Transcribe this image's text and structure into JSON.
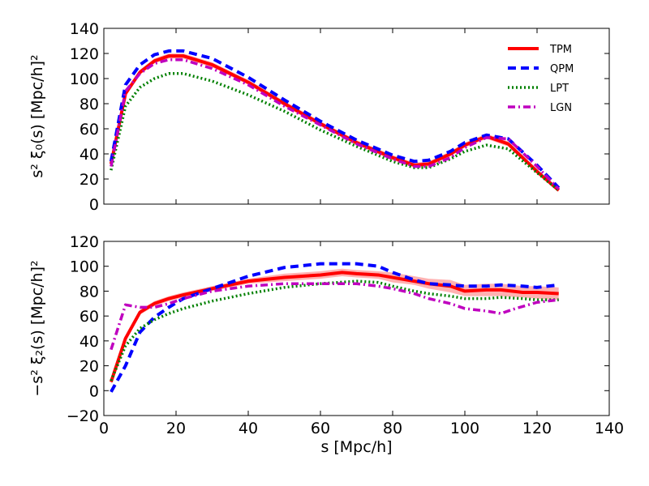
{
  "chart_data": {
    "type": "line",
    "x_label": "s  [Mpc/h]",
    "x_range": [
      0,
      140
    ],
    "x_ticks": [
      "0",
      "20",
      "40",
      "60",
      "80",
      "100",
      "120",
      "140"
    ],
    "series_styles": [
      {
        "name": "TPM",
        "color": "#ff0000",
        "dash": "solid"
      },
      {
        "name": "QPM",
        "color": "#0000ff",
        "dash": "dashed"
      },
      {
        "name": "LPT",
        "color": "#008000",
        "dash": "dotted"
      },
      {
        "name": "LGN",
        "color": "#bf00bf",
        "dash": "dashdot"
      }
    ],
    "panels": [
      {
        "id": "monopole",
        "ylabel": "s² ξ₀(s)  [Mpc/h]²",
        "ylim": [
          0,
          140
        ],
        "y_ticks": [
          "0",
          "20",
          "40",
          "60",
          "80",
          "100",
          "120",
          "140"
        ],
        "legend": [
          "TPM",
          "QPM",
          "LPT",
          "LGN"
        ],
        "legend_position": "top-right",
        "series": [
          {
            "name": "TPM",
            "x": [
              2,
              6,
              10,
              14,
              18,
              22,
              30,
              40,
              50,
              60,
              70,
              80,
              86,
              90,
              96,
              100,
              106,
              112,
              120,
              126
            ],
            "y": [
              32,
              88,
              105,
              114,
              118,
              118,
              111,
              97,
              80,
              64,
              49,
              37,
              31,
              32,
              40,
              47,
              54,
              48,
              26,
              11
            ]
          },
          {
            "name": "TPM band",
            "x": [
              2,
              6,
              10,
              14,
              18,
              22,
              30,
              40,
              50,
              60,
              70,
              80,
              86,
              90,
              96,
              100,
              106,
              112,
              120,
              126
            ],
            "y_low": [
              30,
              86,
              103,
              112,
              116,
              116,
              109,
              95,
              78,
              62,
              47,
              35,
              29,
              30,
              38,
              45,
              52,
              46,
              24,
              10
            ],
            "y_high": [
              34,
              90,
              107,
              116,
              120,
              120,
              113,
              99,
              82,
              66,
              51,
              39,
              33,
              34,
              42,
              49,
              56,
              50,
              28,
              12
            ]
          },
          {
            "name": "QPM",
            "x": [
              2,
              6,
              10,
              14,
              18,
              22,
              30,
              40,
              50,
              60,
              70,
              80,
              86,
              90,
              96,
              100,
              106,
              112,
              120,
              126
            ],
            "y": [
              34,
              95,
              111,
              119,
              122,
              122,
              116,
              101,
              83,
              66,
              51,
              39,
              34,
              35,
              42,
              49,
              55,
              52,
              31,
              13
            ]
          },
          {
            "name": "LPT",
            "x": [
              2,
              6,
              10,
              14,
              18,
              22,
              30,
              40,
              50,
              60,
              70,
              80,
              86,
              90,
              96,
              100,
              106,
              112,
              120,
              126
            ],
            "y": [
              27,
              78,
              93,
              100,
              104,
              104,
              98,
              87,
              74,
              59,
              46,
              34,
              29,
              29,
              36,
              42,
              47,
              44,
              25,
              11
            ]
          },
          {
            "name": "LGN",
            "x": [
              2,
              6,
              10,
              14,
              18,
              22,
              30,
              40,
              50,
              60,
              70,
              80,
              86,
              90,
              96,
              100,
              106,
              112,
              120,
              126
            ],
            "y": [
              30,
              90,
              104,
              112,
              115,
              115,
              108,
              95,
              78,
              63,
              48,
              36,
              30,
              30,
              37,
              45,
              53,
              52,
              30,
              12
            ]
          }
        ]
      },
      {
        "id": "quadrupole",
        "ylabel": "−s² ξ₂(s)  [Mpc/h]²",
        "ylim": [
          -20,
          120
        ],
        "y_ticks": [
          "−20",
          "0",
          "20",
          "40",
          "60",
          "80",
          "100",
          "120"
        ],
        "series": [
          {
            "name": "TPM",
            "x": [
              2,
              6,
              10,
              14,
              18,
              22,
              30,
              40,
              50,
              60,
              66,
              70,
              76,
              80,
              86,
              90,
              96,
              100,
              106,
              110,
              116,
              120,
              126
            ],
            "y": [
              7,
              42,
              63,
              70,
              74,
              77,
              82,
              88,
              91,
              93,
              95,
              94,
              93,
              91,
              88,
              86,
              84,
              80,
              81,
              81,
              79,
              79,
              78
            ]
          },
          {
            "name": "TPM band",
            "x": [
              2,
              6,
              10,
              14,
              18,
              22,
              30,
              40,
              50,
              60,
              66,
              70,
              76,
              80,
              86,
              90,
              96,
              100,
              106,
              110,
              116,
              120,
              126
            ],
            "y_low": [
              5,
              40,
              61,
              68,
              72,
              75,
              80,
              86,
              88,
              90,
              92,
              91,
              90,
              87,
              85,
              82,
              79,
              76,
              76,
              76,
              75,
              74,
              73
            ],
            "y_high": [
              9,
              44,
              65,
              72,
              76,
              79,
              84,
              90,
              94,
              96,
              98,
              97,
              96,
              95,
              92,
              90,
              89,
              85,
              86,
              86,
              84,
              84,
              83
            ]
          },
          {
            "name": "QPM",
            "x": [
              2,
              6,
              10,
              14,
              18,
              22,
              30,
              40,
              50,
              60,
              70,
              76,
              80,
              86,
              90,
              96,
              100,
              106,
              110,
              116,
              120,
              126
            ],
            "y": [
              -1,
              20,
              47,
              59,
              67,
              74,
              82,
              92,
              99,
              102,
              102,
              100,
              95,
              89,
              86,
              85,
              84,
              84,
              85,
              84,
              83,
              85
            ]
          },
          {
            "name": "LPT",
            "x": [
              2,
              6,
              10,
              14,
              18,
              22,
              30,
              40,
              50,
              60,
              70,
              76,
              80,
              86,
              90,
              96,
              100,
              106,
              110,
              116,
              120,
              126
            ],
            "y": [
              8,
              36,
              50,
              57,
              62,
              66,
              72,
              78,
              83,
              86,
              88,
              87,
              84,
              80,
              78,
              76,
              74,
              74,
              75,
              74,
              73,
              73
            ]
          },
          {
            "name": "LGN",
            "x": [
              2,
              6,
              10,
              14,
              18,
              22,
              30,
              40,
              50,
              60,
              70,
              76,
              80,
              86,
              90,
              96,
              100,
              106,
              110,
              114,
              120,
              126
            ],
            "y": [
              33,
              69,
              67,
              67,
              70,
              74,
              80,
              84,
              86,
              86,
              86,
              84,
              82,
              78,
              74,
              70,
              66,
              64,
              62,
              66,
              71,
              73
            ]
          }
        ]
      }
    ]
  }
}
